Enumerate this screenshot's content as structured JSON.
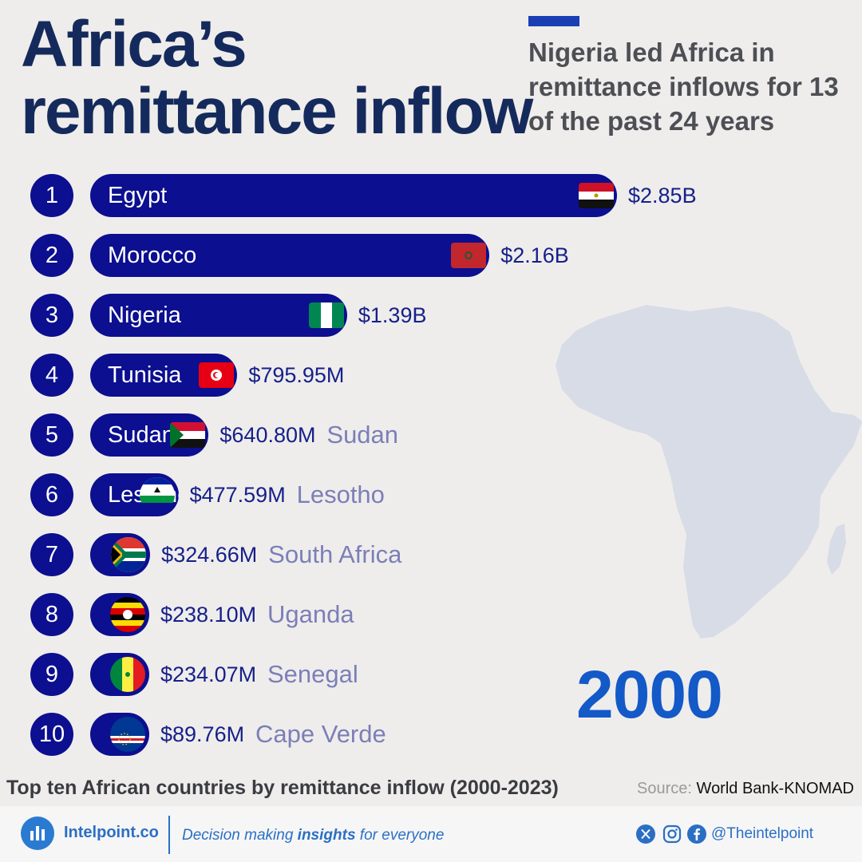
{
  "header": {
    "title_line1": "Africa’s",
    "title_line2": "remittance inflow",
    "subtitle": "Nigeria led Africa in remittance inflows for 13 of the past 24 years",
    "accent_color": "#1a3fb5"
  },
  "year": "2000",
  "caption": "Top ten African countries by remittance inflow (2000-2023)",
  "source": {
    "label": "Source:",
    "value": "World Bank-KNOMAD"
  },
  "footer": {
    "brand": "Intelpoint.co",
    "tagline_pre": "Decision making ",
    "tagline_bold": "insights",
    "tagline_post": " for everyone",
    "handle": "@Theintelpoint",
    "social_icons": [
      "x-icon",
      "instagram-icon",
      "facebook-icon"
    ]
  },
  "chart_data": {
    "type": "bar",
    "orientation": "horizontal",
    "unit": "USD",
    "bar_color": "#0c0f8f",
    "categories": [
      "Egypt",
      "Morocco",
      "Nigeria",
      "Tunisia",
      "Sudan",
      "Lesotho",
      "South Africa",
      "Uganda",
      "Senegal",
      "Cape Verde"
    ],
    "ranks": [
      "1",
      "2",
      "3",
      "4",
      "5",
      "6",
      "7",
      "8",
      "9",
      "10"
    ],
    "values": [
      2850000000,
      2160000000,
      1390000000,
      795950000,
      640800000,
      477590000,
      324660000,
      238100000,
      234070000,
      89760000
    ],
    "value_labels": [
      "$2.85B",
      "$2.16B",
      "$1.39B",
      "$795.95M",
      "$640.80M",
      "$477.59M",
      "$324.66M",
      "$238.10M",
      "$234.07M",
      "$89.76M"
    ],
    "flags": [
      "egypt-flag",
      "morocco-flag",
      "nigeria-flag",
      "tunisia-flag",
      "sudan-flag",
      "lesotho-flag",
      "south-africa-flag",
      "uganda-flag",
      "senegal-flag",
      "cape-verde-flag"
    ]
  }
}
